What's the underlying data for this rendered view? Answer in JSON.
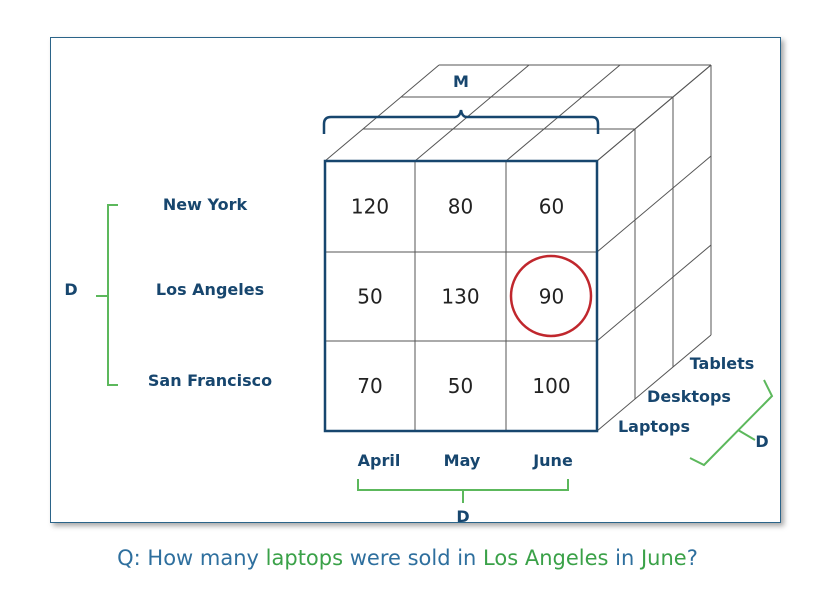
{
  "cube": {
    "measure_label": "M",
    "rows": [
      "New York",
      "Los Angeles",
      "San Francisco"
    ],
    "columns": [
      "April",
      "May",
      "June"
    ],
    "depth": [
      "Laptops",
      "Desktops",
      "Tablets"
    ],
    "dimension_label": "D",
    "values": [
      [
        120,
        80,
        60
      ],
      [
        50,
        130,
        90
      ],
      [
        70,
        50,
        100
      ]
    ],
    "highlight": {
      "row": 1,
      "col": 2
    },
    "colors": {
      "frame": "#17466e",
      "bracket_d": "#5cb85c",
      "highlight": "#c0272d"
    }
  },
  "question": [
    {
      "text": "Q: How many ",
      "color": "#2e6f9e"
    },
    {
      "text": "laptops",
      "color": "#3aa148"
    },
    {
      "text": " were sold in ",
      "color": "#2e6f9e"
    },
    {
      "text": "Los Angeles",
      "color": "#3aa148"
    },
    {
      "text": " in ",
      "color": "#2e6f9e"
    },
    {
      "text": "June",
      "color": "#3aa148"
    },
    {
      "text": "?",
      "color": "#2e6f9e"
    }
  ]
}
